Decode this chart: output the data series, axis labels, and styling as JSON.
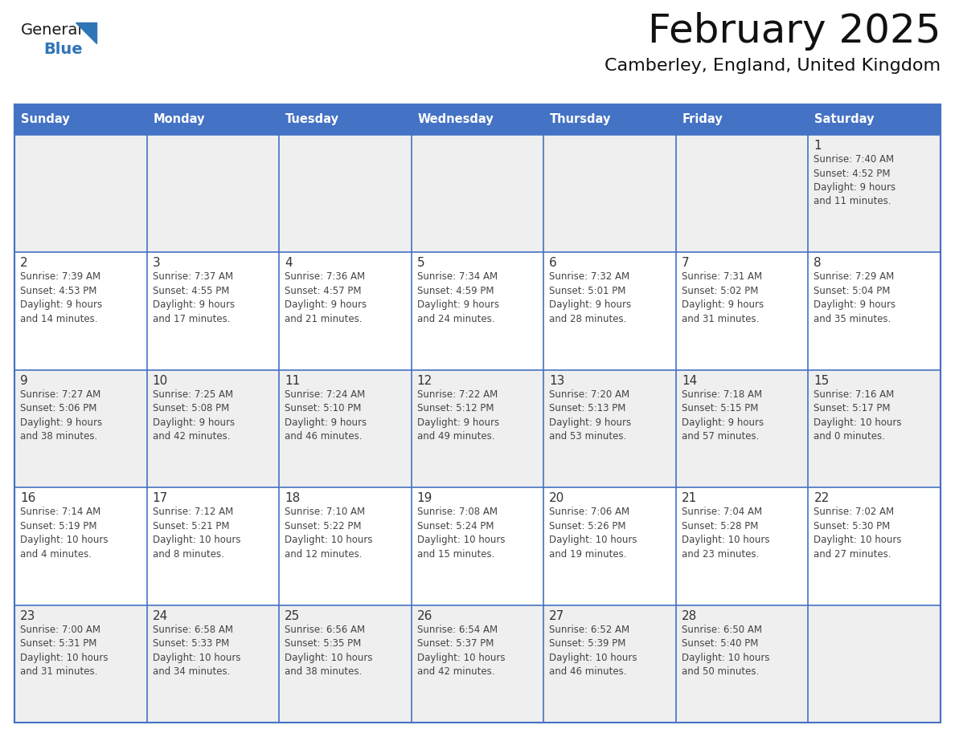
{
  "title": "February 2025",
  "subtitle": "Camberley, England, United Kingdom",
  "header_bg": "#4472C4",
  "header_text_color": "#FFFFFF",
  "day_names": [
    "Sunday",
    "Monday",
    "Tuesday",
    "Wednesday",
    "Thursday",
    "Friday",
    "Saturday"
  ],
  "row_bgs": [
    "#EFEFEF",
    "#FFFFFF",
    "#EFEFEF",
    "#FFFFFF",
    "#EFEFEF"
  ],
  "border_color": "#4472C4",
  "day_num_color": "#333333",
  "text_color": "#444444",
  "logo_general_color": "#1A1A1A",
  "logo_blue_color": "#2E75B6",
  "weeks": [
    [
      {
        "day": null,
        "info": null
      },
      {
        "day": null,
        "info": null
      },
      {
        "day": null,
        "info": null
      },
      {
        "day": null,
        "info": null
      },
      {
        "day": null,
        "info": null
      },
      {
        "day": null,
        "info": null
      },
      {
        "day": 1,
        "info": "Sunrise: 7:40 AM\nSunset: 4:52 PM\nDaylight: 9 hours\nand 11 minutes."
      }
    ],
    [
      {
        "day": 2,
        "info": "Sunrise: 7:39 AM\nSunset: 4:53 PM\nDaylight: 9 hours\nand 14 minutes."
      },
      {
        "day": 3,
        "info": "Sunrise: 7:37 AM\nSunset: 4:55 PM\nDaylight: 9 hours\nand 17 minutes."
      },
      {
        "day": 4,
        "info": "Sunrise: 7:36 AM\nSunset: 4:57 PM\nDaylight: 9 hours\nand 21 minutes."
      },
      {
        "day": 5,
        "info": "Sunrise: 7:34 AM\nSunset: 4:59 PM\nDaylight: 9 hours\nand 24 minutes."
      },
      {
        "day": 6,
        "info": "Sunrise: 7:32 AM\nSunset: 5:01 PM\nDaylight: 9 hours\nand 28 minutes."
      },
      {
        "day": 7,
        "info": "Sunrise: 7:31 AM\nSunset: 5:02 PM\nDaylight: 9 hours\nand 31 minutes."
      },
      {
        "day": 8,
        "info": "Sunrise: 7:29 AM\nSunset: 5:04 PM\nDaylight: 9 hours\nand 35 minutes."
      }
    ],
    [
      {
        "day": 9,
        "info": "Sunrise: 7:27 AM\nSunset: 5:06 PM\nDaylight: 9 hours\nand 38 minutes."
      },
      {
        "day": 10,
        "info": "Sunrise: 7:25 AM\nSunset: 5:08 PM\nDaylight: 9 hours\nand 42 minutes."
      },
      {
        "day": 11,
        "info": "Sunrise: 7:24 AM\nSunset: 5:10 PM\nDaylight: 9 hours\nand 46 minutes."
      },
      {
        "day": 12,
        "info": "Sunrise: 7:22 AM\nSunset: 5:12 PM\nDaylight: 9 hours\nand 49 minutes."
      },
      {
        "day": 13,
        "info": "Sunrise: 7:20 AM\nSunset: 5:13 PM\nDaylight: 9 hours\nand 53 minutes."
      },
      {
        "day": 14,
        "info": "Sunrise: 7:18 AM\nSunset: 5:15 PM\nDaylight: 9 hours\nand 57 minutes."
      },
      {
        "day": 15,
        "info": "Sunrise: 7:16 AM\nSunset: 5:17 PM\nDaylight: 10 hours\nand 0 minutes."
      }
    ],
    [
      {
        "day": 16,
        "info": "Sunrise: 7:14 AM\nSunset: 5:19 PM\nDaylight: 10 hours\nand 4 minutes."
      },
      {
        "day": 17,
        "info": "Sunrise: 7:12 AM\nSunset: 5:21 PM\nDaylight: 10 hours\nand 8 minutes."
      },
      {
        "day": 18,
        "info": "Sunrise: 7:10 AM\nSunset: 5:22 PM\nDaylight: 10 hours\nand 12 minutes."
      },
      {
        "day": 19,
        "info": "Sunrise: 7:08 AM\nSunset: 5:24 PM\nDaylight: 10 hours\nand 15 minutes."
      },
      {
        "day": 20,
        "info": "Sunrise: 7:06 AM\nSunset: 5:26 PM\nDaylight: 10 hours\nand 19 minutes."
      },
      {
        "day": 21,
        "info": "Sunrise: 7:04 AM\nSunset: 5:28 PM\nDaylight: 10 hours\nand 23 minutes."
      },
      {
        "day": 22,
        "info": "Sunrise: 7:02 AM\nSunset: 5:30 PM\nDaylight: 10 hours\nand 27 minutes."
      }
    ],
    [
      {
        "day": 23,
        "info": "Sunrise: 7:00 AM\nSunset: 5:31 PM\nDaylight: 10 hours\nand 31 minutes."
      },
      {
        "day": 24,
        "info": "Sunrise: 6:58 AM\nSunset: 5:33 PM\nDaylight: 10 hours\nand 34 minutes."
      },
      {
        "day": 25,
        "info": "Sunrise: 6:56 AM\nSunset: 5:35 PM\nDaylight: 10 hours\nand 38 minutes."
      },
      {
        "day": 26,
        "info": "Sunrise: 6:54 AM\nSunset: 5:37 PM\nDaylight: 10 hours\nand 42 minutes."
      },
      {
        "day": 27,
        "info": "Sunrise: 6:52 AM\nSunset: 5:39 PM\nDaylight: 10 hours\nand 46 minutes."
      },
      {
        "day": 28,
        "info": "Sunrise: 6:50 AM\nSunset: 5:40 PM\nDaylight: 10 hours\nand 50 minutes."
      },
      {
        "day": null,
        "info": null
      }
    ]
  ]
}
